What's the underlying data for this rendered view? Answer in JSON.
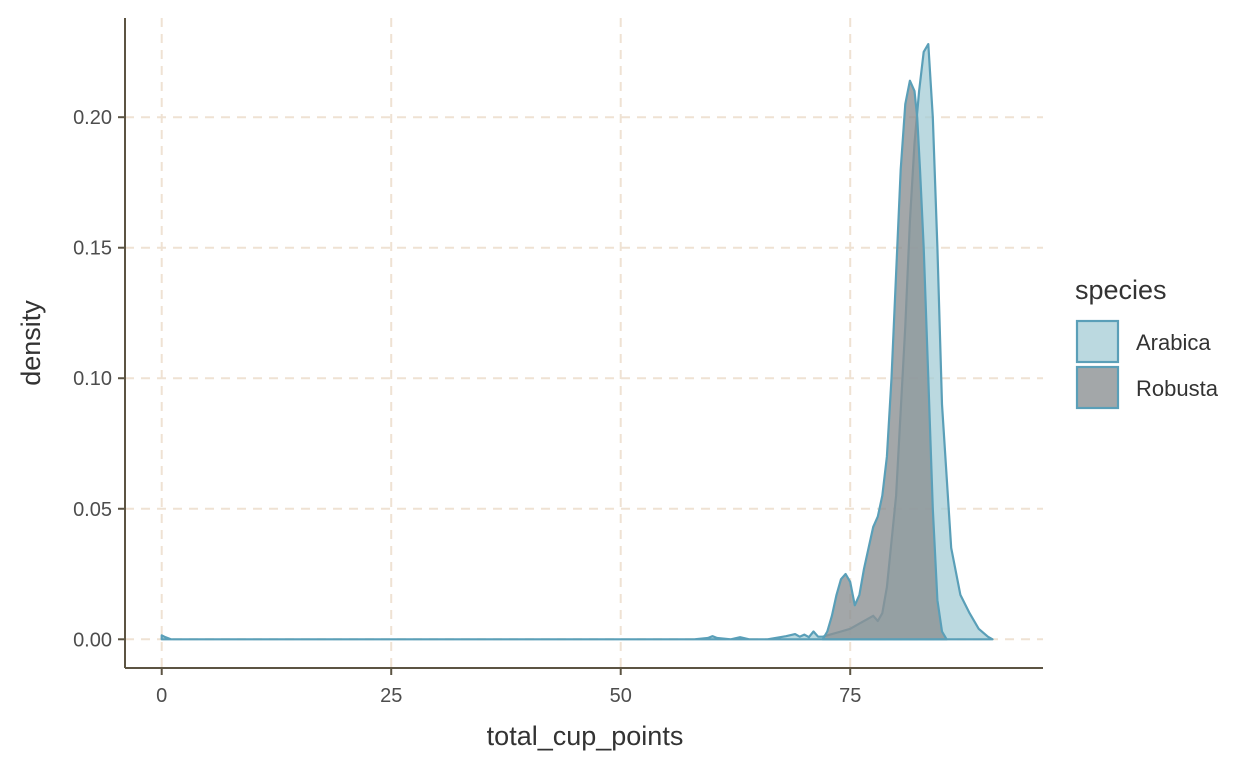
{
  "chart_data": {
    "type": "area",
    "xlabel": "total_cup_points",
    "ylabel": "density",
    "xlim": [
      -4,
      96
    ],
    "ylim": [
      -0.011,
      0.238
    ],
    "x_ticks": [
      0,
      25,
      50,
      75
    ],
    "x_tick_labels": [
      "0",
      "25",
      "50",
      "75"
    ],
    "y_ticks": [
      0.0,
      0.05,
      0.1,
      0.15,
      0.2
    ],
    "y_tick_labels": [
      "0.00",
      "0.05",
      "0.10",
      "0.15",
      "0.20"
    ],
    "grid": true,
    "grid_style": "dashed",
    "legend": {
      "title": "species",
      "position": "right",
      "entries": [
        "Arabica",
        "Robusta"
      ]
    },
    "colors": {
      "outline": "#5a9fb8",
      "grid": "#efe2d3",
      "axis": "#5c5443"
    },
    "series": [
      {
        "name": "Arabica",
        "fill": "#a4ccd6",
        "fill_opacity": 0.75,
        "x": [
          0,
          0.4,
          1,
          10,
          30,
          58,
          59.5,
          60,
          60.5,
          62,
          63,
          64,
          66,
          68,
          69,
          69.5,
          70,
          70.5,
          71,
          71.5,
          72,
          73,
          74,
          75,
          76,
          77,
          77.5,
          78,
          78.5,
          79,
          80,
          81,
          81.5,
          82,
          82.5,
          83,
          83.5,
          84,
          84.5,
          85,
          86,
          87,
          88,
          89,
          90,
          90.5
        ],
        "y": [
          0.0015,
          0.0008,
          0.0,
          0.0,
          0.0,
          0.0,
          0.0005,
          0.0012,
          0.0005,
          0.0,
          0.0008,
          0.0,
          0.0,
          0.0012,
          0.002,
          0.001,
          0.0018,
          0.0008,
          0.003,
          0.001,
          0.001,
          0.002,
          0.003,
          0.004,
          0.006,
          0.008,
          0.009,
          0.007,
          0.01,
          0.02,
          0.055,
          0.12,
          0.16,
          0.19,
          0.21,
          0.225,
          0.228,
          0.2,
          0.15,
          0.09,
          0.035,
          0.017,
          0.01,
          0.004,
          0.001,
          0.0
        ]
      },
      {
        "name": "Robusta",
        "fill": "#8c9193",
        "fill_opacity": 0.8,
        "x": [
          72,
          72.5,
          73,
          73.5,
          74,
          74.5,
          75,
          75.5,
          76,
          76.5,
          77,
          77.5,
          78,
          78.5,
          79,
          79.5,
          80,
          80.5,
          81,
          81.5,
          82,
          82.3,
          82.6,
          83,
          83.5,
          84,
          84.5,
          85,
          85.5
        ],
        "y": [
          0.0,
          0.003,
          0.009,
          0.017,
          0.023,
          0.025,
          0.022,
          0.013,
          0.017,
          0.027,
          0.035,
          0.043,
          0.047,
          0.055,
          0.07,
          0.1,
          0.14,
          0.18,
          0.205,
          0.214,
          0.21,
          0.2,
          0.18,
          0.15,
          0.1,
          0.05,
          0.015,
          0.003,
          0.0
        ]
      }
    ]
  }
}
